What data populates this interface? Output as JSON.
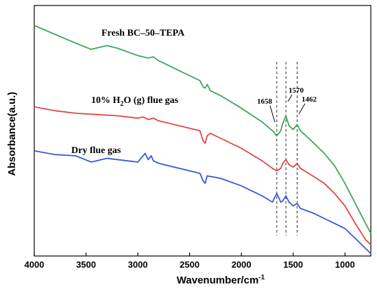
{
  "chart_data": {
    "type": "line",
    "xlabel": "Wavenumber/cm",
    "xlabel_sup": "-1",
    "ylabel": "Absorbance(a.u.)",
    "xlim": [
      4000,
      750
    ],
    "x_reversed": true,
    "x_ticks": [
      4000,
      3500,
      3000,
      2500,
      2000,
      1500,
      1000
    ],
    "ylim": [
      0,
      1
    ],
    "y_ticks_shown": false,
    "legend": "none",
    "series": [
      {
        "name": "Fresh BC-50-TEPA",
        "color": "#3aa65c",
        "points": [
          [
            4000,
            0.92
          ],
          [
            3800,
            0.885
          ],
          [
            3600,
            0.85
          ],
          [
            3450,
            0.825
          ],
          [
            3300,
            0.84
          ],
          [
            3200,
            0.83
          ],
          [
            3000,
            0.8
          ],
          [
            2900,
            0.79
          ],
          [
            2850,
            0.795
          ],
          [
            2800,
            0.78
          ],
          [
            2600,
            0.74
          ],
          [
            2400,
            0.7
          ],
          [
            2370,
            0.675
          ],
          [
            2350,
            0.67
          ],
          [
            2330,
            0.685
          ],
          [
            2300,
            0.66
          ],
          [
            2200,
            0.64
          ],
          [
            2000,
            0.59
          ],
          [
            1800,
            0.535
          ],
          [
            1700,
            0.5
          ],
          [
            1658,
            0.48
          ],
          [
            1620,
            0.5
          ],
          [
            1600,
            0.53
          ],
          [
            1570,
            0.56
          ],
          [
            1540,
            0.52
          ],
          [
            1500,
            0.505
          ],
          [
            1462,
            0.525
          ],
          [
            1430,
            0.5
          ],
          [
            1350,
            0.47
          ],
          [
            1300,
            0.45
          ],
          [
            1200,
            0.41
          ],
          [
            1100,
            0.36
          ],
          [
            1000,
            0.29
          ],
          [
            900,
            0.21
          ],
          [
            800,
            0.13
          ],
          [
            750,
            0.09
          ]
        ]
      },
      {
        "name": "10% H2O (g) flue gas",
        "color": "#e04545",
        "points": [
          [
            4000,
            0.595
          ],
          [
            3800,
            0.58
          ],
          [
            3600,
            0.57
          ],
          [
            3400,
            0.565
          ],
          [
            3200,
            0.56
          ],
          [
            3000,
            0.55
          ],
          [
            2950,
            0.555
          ],
          [
            2900,
            0.545
          ],
          [
            2850,
            0.55
          ],
          [
            2800,
            0.54
          ],
          [
            2600,
            0.52
          ],
          [
            2400,
            0.5
          ],
          [
            2370,
            0.46
          ],
          [
            2350,
            0.45
          ],
          [
            2330,
            0.48
          ],
          [
            2300,
            0.49
          ],
          [
            2200,
            0.47
          ],
          [
            2000,
            0.43
          ],
          [
            1800,
            0.38
          ],
          [
            1700,
            0.35
          ],
          [
            1658,
            0.34
          ],
          [
            1620,
            0.35
          ],
          [
            1600,
            0.37
          ],
          [
            1570,
            0.385
          ],
          [
            1540,
            0.365
          ],
          [
            1500,
            0.355
          ],
          [
            1462,
            0.37
          ],
          [
            1430,
            0.35
          ],
          [
            1350,
            0.33
          ],
          [
            1200,
            0.29
          ],
          [
            1100,
            0.25
          ],
          [
            1000,
            0.2
          ],
          [
            900,
            0.13
          ],
          [
            800,
            0.065
          ],
          [
            750,
            0.045
          ]
        ]
      },
      {
        "name": "Dry flue gas",
        "color": "#3a56d6",
        "points": [
          [
            4000,
            0.42
          ],
          [
            3800,
            0.405
          ],
          [
            3600,
            0.4
          ],
          [
            3450,
            0.375
          ],
          [
            3300,
            0.39
          ],
          [
            3100,
            0.38
          ],
          [
            3000,
            0.375
          ],
          [
            2930,
            0.41
          ],
          [
            2900,
            0.385
          ],
          [
            2870,
            0.4
          ],
          [
            2850,
            0.38
          ],
          [
            2800,
            0.37
          ],
          [
            2600,
            0.35
          ],
          [
            2400,
            0.33
          ],
          [
            2370,
            0.3
          ],
          [
            2350,
            0.29
          ],
          [
            2330,
            0.32
          ],
          [
            2200,
            0.31
          ],
          [
            2000,
            0.28
          ],
          [
            1800,
            0.24
          ],
          [
            1700,
            0.215
          ],
          [
            1658,
            0.25
          ],
          [
            1620,
            0.215
          ],
          [
            1600,
            0.22
          ],
          [
            1570,
            0.24
          ],
          [
            1540,
            0.215
          ],
          [
            1500,
            0.2
          ],
          [
            1462,
            0.21
          ],
          [
            1430,
            0.19
          ],
          [
            1300,
            0.17
          ],
          [
            1200,
            0.15
          ],
          [
            1100,
            0.13
          ],
          [
            1000,
            0.11
          ],
          [
            900,
            0.07
          ],
          [
            800,
            0.03
          ],
          [
            750,
            0.01
          ]
        ]
      }
    ],
    "reference_lines_x": [
      1658,
      1570,
      1462
    ],
    "annotations": [
      {
        "text": "1658",
        "x": 1658
      },
      {
        "text": "1570",
        "x": 1570
      },
      {
        "text": "1462",
        "x": 1462
      }
    ],
    "series_labels": [
      {
        "text": "Fresh BC–50–TEPA"
      },
      {
        "text_parts": [
          "10% H",
          "2",
          "O (g) flue gas"
        ]
      },
      {
        "text": "Dry flue gas"
      }
    ]
  }
}
